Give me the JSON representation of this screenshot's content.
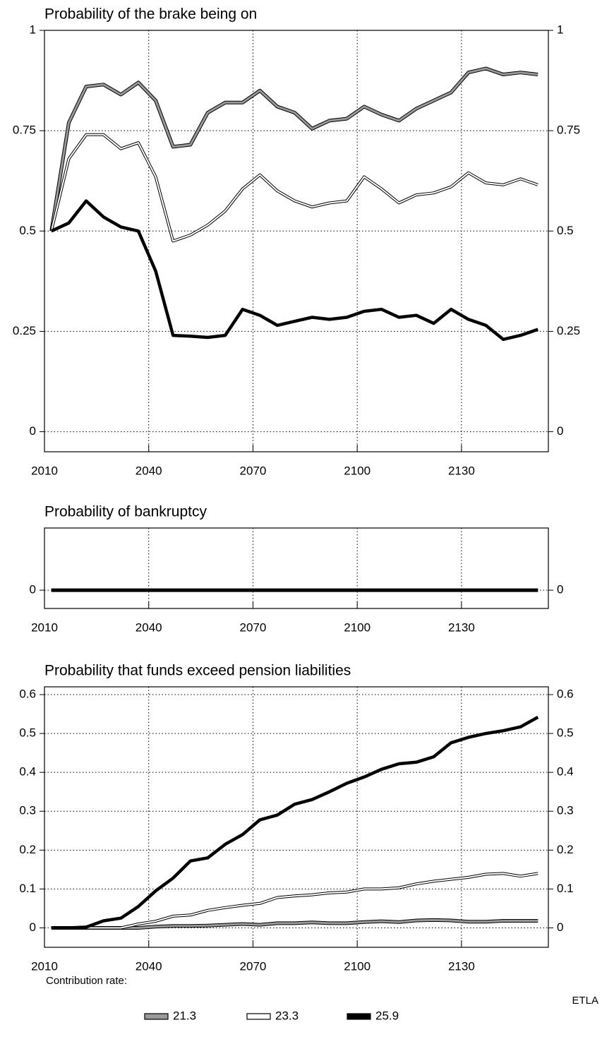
{
  "chart_data": [
    {
      "type": "line",
      "title": "Probability of the brake being on",
      "x": [
        2012,
        2017,
        2022,
        2027,
        2032,
        2037,
        2042,
        2047,
        2052,
        2057,
        2062,
        2067,
        2072,
        2077,
        2082,
        2087,
        2092,
        2097,
        2102,
        2107,
        2112,
        2117,
        2122,
        2127,
        2132,
        2137,
        2142,
        2147,
        2152
      ],
      "xlim": [
        2010,
        2155
      ],
      "xticks": [
        2010,
        2040,
        2070,
        2100,
        2130
      ],
      "ylim": [
        -0.05,
        1
      ],
      "yticks": [
        0,
        0.25,
        0.5,
        0.75,
        1
      ],
      "grid": true,
      "series": [
        {
          "name": "21.3",
          "color": "#999999",
          "values": [
            0.5,
            0.77,
            0.86,
            0.865,
            0.84,
            0.87,
            0.825,
            0.71,
            0.715,
            0.795,
            0.82,
            0.82,
            0.85,
            0.81,
            0.795,
            0.755,
            0.775,
            0.78,
            0.81,
            0.79,
            0.775,
            0.805,
            0.825,
            0.845,
            0.895,
            0.905,
            0.89,
            0.895,
            0.89
          ]
        },
        {
          "name": "23.3",
          "color": "#ffffff",
          "values": [
            0.5,
            0.68,
            0.74,
            0.74,
            0.705,
            0.72,
            0.635,
            0.475,
            0.49,
            0.515,
            0.55,
            0.605,
            0.64,
            0.6,
            0.575,
            0.56,
            0.57,
            0.575,
            0.635,
            0.605,
            0.57,
            0.59,
            0.595,
            0.61,
            0.645,
            0.62,
            0.615,
            0.63,
            0.615
          ]
        },
        {
          "name": "25.9",
          "color": "#000000",
          "values": [
            0.5,
            0.52,
            0.575,
            0.535,
            0.51,
            0.5,
            0.4,
            0.24,
            0.238,
            0.235,
            0.24,
            0.305,
            0.29,
            0.265,
            0.275,
            0.285,
            0.28,
            0.285,
            0.3,
            0.305,
            0.285,
            0.29,
            0.27,
            0.305,
            0.28,
            0.265,
            0.23,
            0.24,
            0.255
          ]
        }
      ]
    },
    {
      "type": "line",
      "title": "Probability of bankruptcy",
      "x": [
        2012,
        2017,
        2022,
        2027,
        2032,
        2037,
        2042,
        2047,
        2052,
        2057,
        2062,
        2067,
        2072,
        2077,
        2082,
        2087,
        2092,
        2097,
        2102,
        2107,
        2112,
        2117,
        2122,
        2127,
        2132,
        2137,
        2142,
        2147,
        2152
      ],
      "xlim": [
        2010,
        2155
      ],
      "xticks": [
        2010,
        2040,
        2070,
        2100,
        2130
      ],
      "ylim": [
        -0.05,
        0.17
      ],
      "yticks": [
        0
      ],
      "grid": true,
      "series": [
        {
          "name": "21.3",
          "color": "#999999",
          "values": [
            0,
            0,
            0,
            0,
            0,
            0,
            0,
            0,
            0,
            0,
            0,
            0,
            0,
            0,
            0,
            0,
            0,
            0,
            0,
            0,
            0,
            0,
            0,
            0,
            0,
            0,
            0,
            0,
            0
          ]
        },
        {
          "name": "23.3",
          "color": "#ffffff",
          "values": [
            0,
            0,
            0,
            0,
            0,
            0,
            0,
            0,
            0,
            0,
            0,
            0,
            0,
            0,
            0,
            0,
            0,
            0,
            0,
            0,
            0,
            0,
            0,
            0,
            0,
            0,
            0,
            0,
            0
          ]
        },
        {
          "name": "25.9",
          "color": "#000000",
          "values": [
            0,
            0,
            0,
            0,
            0,
            0,
            0,
            0,
            0,
            0,
            0,
            0,
            0,
            0,
            0,
            0,
            0,
            0,
            0,
            0,
            0,
            0,
            0,
            0,
            0,
            0,
            0,
            0,
            0
          ]
        }
      ]
    },
    {
      "type": "line",
      "title": "Probability that funds exceed pension liabilities",
      "x": [
        2012,
        2017,
        2022,
        2027,
        2032,
        2037,
        2042,
        2047,
        2052,
        2057,
        2062,
        2067,
        2072,
        2077,
        2082,
        2087,
        2092,
        2097,
        2102,
        2107,
        2112,
        2117,
        2122,
        2127,
        2132,
        2137,
        2142,
        2147,
        2152
      ],
      "xlim": [
        2010,
        2155
      ],
      "xticks": [
        2010,
        2040,
        2070,
        2100,
        2130
      ],
      "ylim": [
        -0.05,
        0.62
      ],
      "yticks": [
        0,
        0.1,
        0.2,
        0.3,
        0.4,
        0.5,
        0.6
      ],
      "grid": true,
      "series": [
        {
          "name": "21.3",
          "color": "#999999",
          "values": [
            0,
            0,
            0,
            0,
            0,
            0,
            0.003,
            0.005,
            0.005,
            0.006,
            0.008,
            0.01,
            0.008,
            0.012,
            0.012,
            0.014,
            0.012,
            0.012,
            0.015,
            0.017,
            0.015,
            0.019,
            0.02,
            0.019,
            0.016,
            0.016,
            0.018,
            0.018,
            0.018
          ]
        },
        {
          "name": "23.3",
          "color": "#ffffff",
          "values": [
            0,
            0,
            0,
            0,
            0,
            0.01,
            0.017,
            0.03,
            0.033,
            0.045,
            0.052,
            0.058,
            0.063,
            0.078,
            0.082,
            0.085,
            0.09,
            0.092,
            0.1,
            0.1,
            0.103,
            0.113,
            0.12,
            0.125,
            0.13,
            0.138,
            0.14,
            0.133,
            0.14
          ]
        },
        {
          "name": "25.9",
          "color": "#000000",
          "values": [
            0,
            0,
            0.002,
            0.018,
            0.025,
            0.055,
            0.095,
            0.128,
            0.172,
            0.18,
            0.215,
            0.24,
            0.278,
            0.29,
            0.318,
            0.33,
            0.35,
            0.372,
            0.388,
            0.408,
            0.422,
            0.426,
            0.44,
            0.476,
            0.49,
            0.5,
            0.507,
            0.517,
            0.542
          ]
        }
      ],
      "legend_title": "Contribution rate:",
      "source": "ETLA"
    }
  ]
}
